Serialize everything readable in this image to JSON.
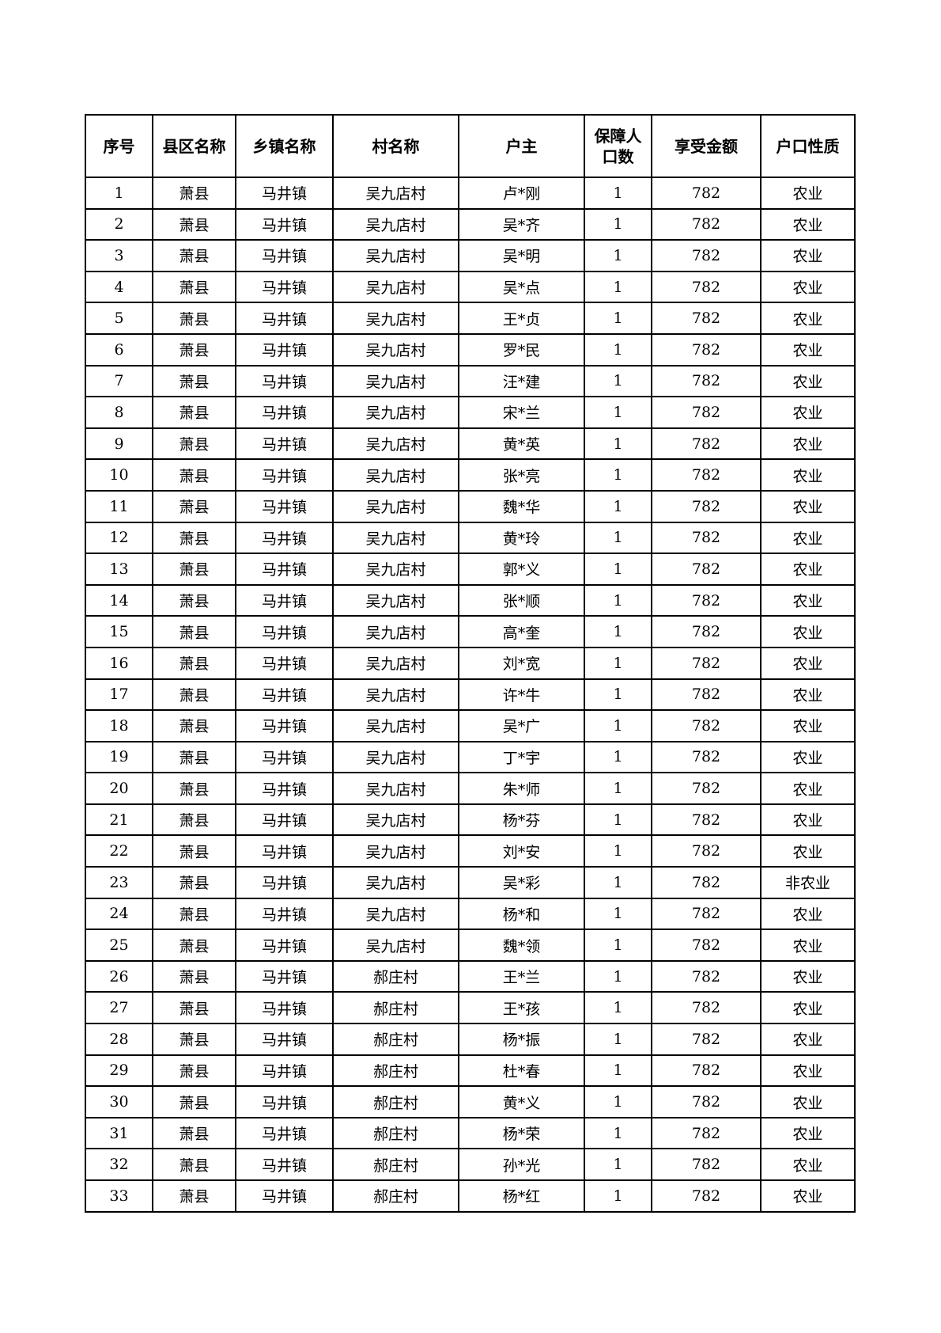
{
  "table": {
    "headers": [
      "序号",
      "县区名称",
      "乡镇名称",
      "村名称",
      "户主",
      "保障人口数",
      "享受金额",
      "户口性质"
    ],
    "header_lines": {
      "population": [
        "保障人",
        "口数"
      ]
    },
    "rows": [
      [
        "1",
        "萧县",
        "马井镇",
        "吴九店村",
        "卢*刚",
        "1",
        "782",
        "农业"
      ],
      [
        "2",
        "萧县",
        "马井镇",
        "吴九店村",
        "吴*齐",
        "1",
        "782",
        "农业"
      ],
      [
        "3",
        "萧县",
        "马井镇",
        "吴九店村",
        "吴*明",
        "1",
        "782",
        "农业"
      ],
      [
        "4",
        "萧县",
        "马井镇",
        "吴九店村",
        "吴*点",
        "1",
        "782",
        "农业"
      ],
      [
        "5",
        "萧县",
        "马井镇",
        "吴九店村",
        "王*贞",
        "1",
        "782",
        "农业"
      ],
      [
        "6",
        "萧县",
        "马井镇",
        "吴九店村",
        "罗*民",
        "1",
        "782",
        "农业"
      ],
      [
        "7",
        "萧县",
        "马井镇",
        "吴九店村",
        "汪*建",
        "1",
        "782",
        "农业"
      ],
      [
        "8",
        "萧县",
        "马井镇",
        "吴九店村",
        "宋*兰",
        "1",
        "782",
        "农业"
      ],
      [
        "9",
        "萧县",
        "马井镇",
        "吴九店村",
        "黄*英",
        "1",
        "782",
        "农业"
      ],
      [
        "10",
        "萧县",
        "马井镇",
        "吴九店村",
        "张*亮",
        "1",
        "782",
        "农业"
      ],
      [
        "11",
        "萧县",
        "马井镇",
        "吴九店村",
        "魏*华",
        "1",
        "782",
        "农业"
      ],
      [
        "12",
        "萧县",
        "马井镇",
        "吴九店村",
        "黄*玲",
        "1",
        "782",
        "农业"
      ],
      [
        "13",
        "萧县",
        "马井镇",
        "吴九店村",
        "郭*义",
        "1",
        "782",
        "农业"
      ],
      [
        "14",
        "萧县",
        "马井镇",
        "吴九店村",
        "张*顺",
        "1",
        "782",
        "农业"
      ],
      [
        "15",
        "萧县",
        "马井镇",
        "吴九店村",
        "高*奎",
        "1",
        "782",
        "农业"
      ],
      [
        "16",
        "萧县",
        "马井镇",
        "吴九店村",
        "刘*宽",
        "1",
        "782",
        "农业"
      ],
      [
        "17",
        "萧县",
        "马井镇",
        "吴九店村",
        "许*牛",
        "1",
        "782",
        "农业"
      ],
      [
        "18",
        "萧县",
        "马井镇",
        "吴九店村",
        "吴*广",
        "1",
        "782",
        "农业"
      ],
      [
        "19",
        "萧县",
        "马井镇",
        "吴九店村",
        "丁*宇",
        "1",
        "782",
        "农业"
      ],
      [
        "20",
        "萧县",
        "马井镇",
        "吴九店村",
        "朱*师",
        "1",
        "782",
        "农业"
      ],
      [
        "21",
        "萧县",
        "马井镇",
        "吴九店村",
        "杨*芬",
        "1",
        "782",
        "农业"
      ],
      [
        "22",
        "萧县",
        "马井镇",
        "吴九店村",
        "刘*安",
        "1",
        "782",
        "农业"
      ],
      [
        "23",
        "萧县",
        "马井镇",
        "吴九店村",
        "吴*彩",
        "1",
        "782",
        "非农业"
      ],
      [
        "24",
        "萧县",
        "马井镇",
        "吴九店村",
        "杨*和",
        "1",
        "782",
        "农业"
      ],
      [
        "25",
        "萧县",
        "马井镇",
        "吴九店村",
        "魏*领",
        "1",
        "782",
        "农业"
      ],
      [
        "26",
        "萧县",
        "马井镇",
        "郝庄村",
        "王*兰",
        "1",
        "782",
        "农业"
      ],
      [
        "27",
        "萧县",
        "马井镇",
        "郝庄村",
        "王*孩",
        "1",
        "782",
        "农业"
      ],
      [
        "28",
        "萧县",
        "马井镇",
        "郝庄村",
        "杨*振",
        "1",
        "782",
        "农业"
      ],
      [
        "29",
        "萧县",
        "马井镇",
        "郝庄村",
        "杜*春",
        "1",
        "782",
        "农业"
      ],
      [
        "30",
        "萧县",
        "马井镇",
        "郝庄村",
        "黄*义",
        "1",
        "782",
        "农业"
      ],
      [
        "31",
        "萧县",
        "马井镇",
        "郝庄村",
        "杨*荣",
        "1",
        "782",
        "农业"
      ],
      [
        "32",
        "萧县",
        "马井镇",
        "郝庄村",
        "孙*光",
        "1",
        "782",
        "农业"
      ],
      [
        "33",
        "萧县",
        "马井镇",
        "郝庄村",
        "杨*红",
        "1",
        "782",
        "农业"
      ]
    ]
  }
}
